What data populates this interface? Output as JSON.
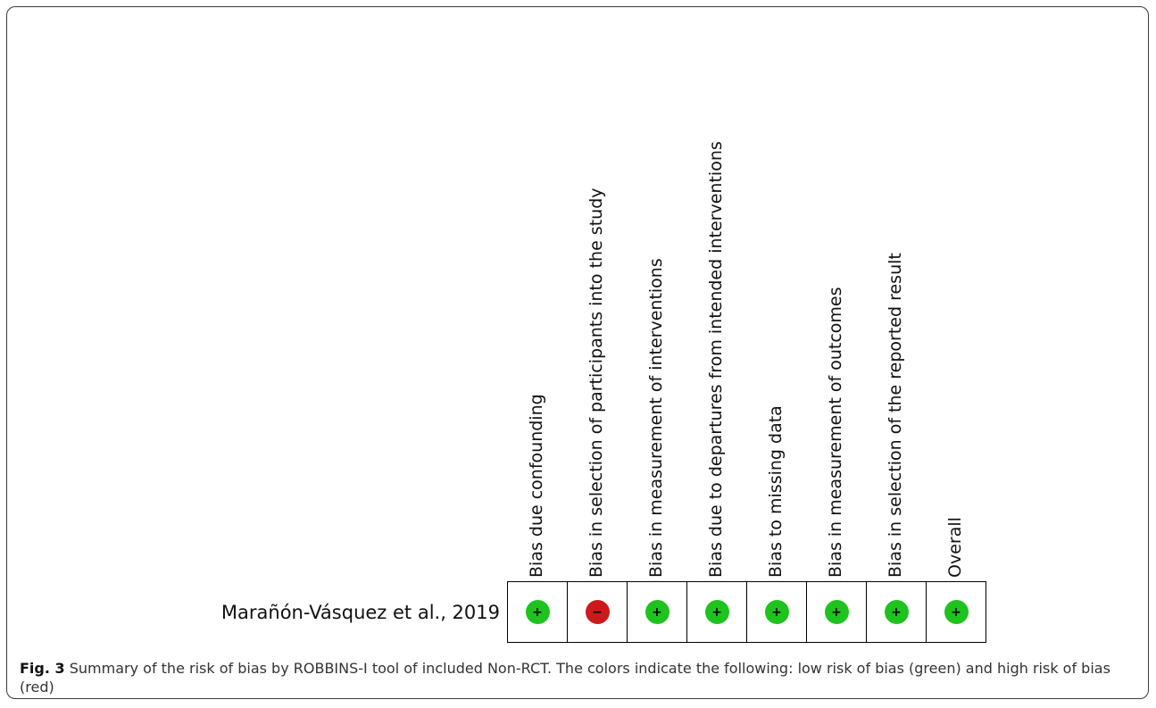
{
  "figure": {
    "domains": [
      "Bias due confounding",
      "Bias in selection of participants into the study",
      "Bias in measurement of interventions",
      "Bias due to departures from intended interventions",
      "Bias to missing data",
      "Bias in measurement of outcomes",
      "Bias in selection of the reported result",
      "Overall"
    ],
    "studies": [
      {
        "name": "Marañón-Vásquez et al., 2019",
        "judgements": [
          "low",
          "high",
          "low",
          "low",
          "low",
          "low",
          "low",
          "low"
        ],
        "symbols": [
          "+",
          "−",
          "+",
          "+",
          "+",
          "+",
          "+",
          "+"
        ]
      }
    ],
    "colors": {
      "low": "#1ec31e",
      "high": "#cc1a1a"
    }
  },
  "caption": {
    "label": "Fig. 3",
    "text": " Summary of the risk of bias by ROBBINS-I tool of included Non-RCT. The colors indicate the following: low risk of bias (green) and high risk of bias (red)"
  }
}
